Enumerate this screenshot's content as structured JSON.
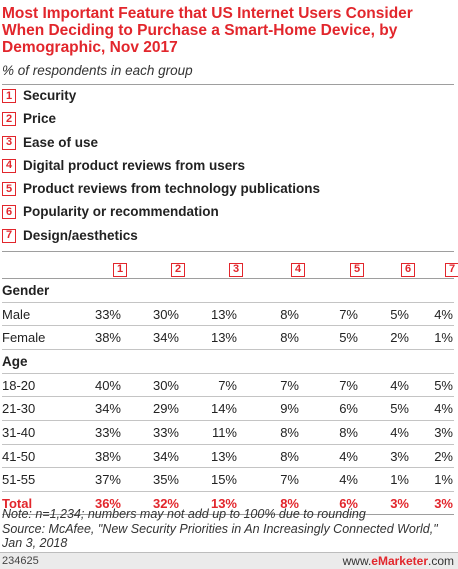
{
  "header": {
    "title": "Most Important Feature that US Internet Users Consider When Deciding to Purchase a Smart-Home Device, by Demographic, Nov 2017",
    "subtitle": "% of respondents in each group"
  },
  "legend": [
    {
      "num": "1",
      "label": "Security"
    },
    {
      "num": "2",
      "label": "Price"
    },
    {
      "num": "3",
      "label": "Ease of use"
    },
    {
      "num": "4",
      "label": "Digital product reviews from users"
    },
    {
      "num": "5",
      "label": "Product reviews from technology publications"
    },
    {
      "num": "6",
      "label": "Popularity or recommendation"
    },
    {
      "num": "7",
      "label": "Design/aesthetics"
    }
  ],
  "chart_data": {
    "type": "table",
    "title": "Most Important Feature that US Internet Users Consider When Deciding to Purchase a Smart-Home Device, by Demographic, Nov 2017",
    "subtitle": "% of respondents in each group",
    "columns": [
      "1",
      "2",
      "3",
      "4",
      "5",
      "6",
      "7"
    ],
    "groups": [
      {
        "name": "Gender",
        "rows": [
          {
            "label": "Male",
            "values": [
              "33%",
              "30%",
              "13%",
              "8%",
              "7%",
              "5%",
              "4%"
            ]
          },
          {
            "label": "Female",
            "values": [
              "38%",
              "34%",
              "13%",
              "8%",
              "5%",
              "2%",
              "1%"
            ]
          }
        ]
      },
      {
        "name": "Age",
        "rows": [
          {
            "label": "18-20",
            "values": [
              "40%",
              "30%",
              "7%",
              "7%",
              "7%",
              "4%",
              "5%"
            ]
          },
          {
            "label": "21-30",
            "values": [
              "34%",
              "29%",
              "14%",
              "9%",
              "6%",
              "5%",
              "4%"
            ]
          },
          {
            "label": "31-40",
            "values": [
              "33%",
              "33%",
              "11%",
              "8%",
              "8%",
              "4%",
              "3%"
            ]
          },
          {
            "label": "41-50",
            "values": [
              "38%",
              "34%",
              "13%",
              "8%",
              "4%",
              "3%",
              "2%"
            ]
          },
          {
            "label": "51-55",
            "values": [
              "37%",
              "35%",
              "15%",
              "7%",
              "4%",
              "1%",
              "1%"
            ]
          }
        ]
      }
    ],
    "total": {
      "label": "Total",
      "values": [
        "36%",
        "32%",
        "13%",
        "8%",
        "6%",
        "3%",
        "3%"
      ]
    }
  },
  "notes": {
    "note": "Note: n=1,234; numbers may not add up to 100% due to rounding",
    "source": "Source: McAfee, \"New Security Priorities in An Increasingly Connected World,\" Jan 3, 2018"
  },
  "footer": {
    "code": "234625",
    "brand_prefix": "www.",
    "brand_name": "eMarketer",
    "brand_suffix": ".com"
  },
  "colors": {
    "accent": "#e2262c"
  }
}
